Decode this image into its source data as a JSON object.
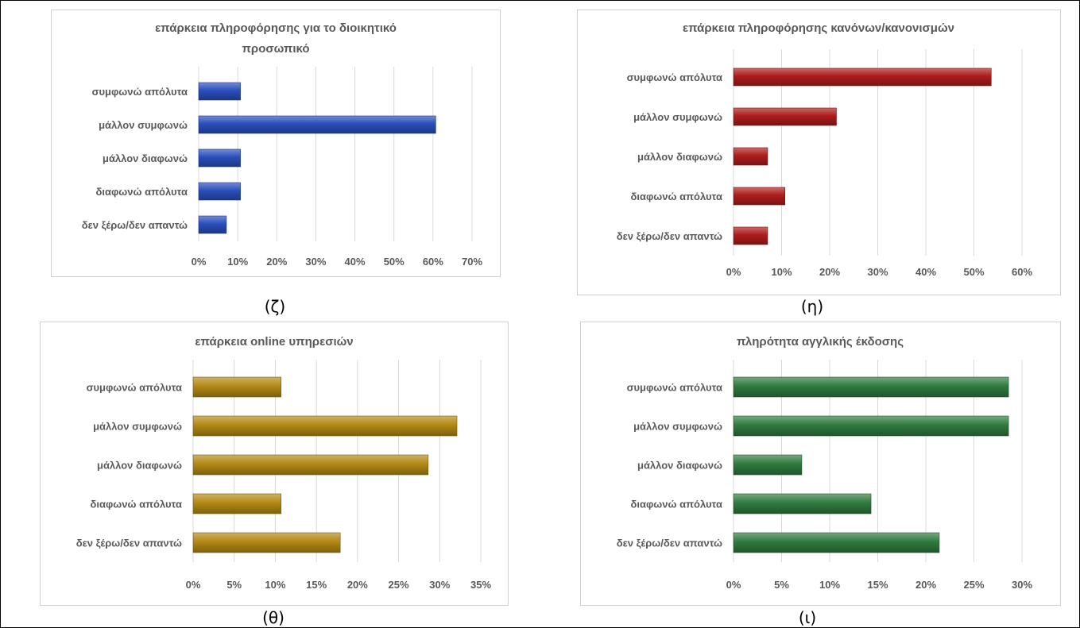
{
  "chart_data": [
    {
      "type": "bar",
      "title": "επάρκεια πληροφόρησης για το διοικητικό προσωπικό",
      "title_lines": [
        "επάρκεια πληροφόρησης για το διοικητικό",
        "προσωπικό"
      ],
      "categories": [
        "συμφωνώ απόλυτα",
        "μάλλον συμφωνώ",
        "μάλλον διαφωνώ",
        "διαφωνώ απόλυτα",
        "δεν ξέρω/δεν απαντώ"
      ],
      "values": [
        10.7,
        60.7,
        10.7,
        10.7,
        7.1
      ],
      "xlim": [
        0,
        70
      ],
      "ticks": [
        "0%",
        "10%",
        "20%",
        "30%",
        "40%",
        "50%",
        "60%",
        "70%"
      ],
      "color": "#2a4ebc",
      "grid": true,
      "caption": "(ζ)"
    },
    {
      "type": "bar",
      "title": "επάρκεια πληροφόρησης κανόνων/κανονισμών",
      "title_lines": [
        "επάρκεια πληροφόρησης κανόνων/κανονισμών"
      ],
      "categories": [
        "συμφωνώ απόλυτα",
        "μάλλον συμφωνώ",
        "μάλλον διαφωνώ",
        "διαφωνώ απόλυτα",
        "δεν ξέρω/δεν απαντώ"
      ],
      "values": [
        53.6,
        21.4,
        7.1,
        10.7,
        7.1
      ],
      "xlim": [
        0,
        60
      ],
      "ticks": [
        "0%",
        "10%",
        "20%",
        "30%",
        "40%",
        "50%",
        "60%"
      ],
      "color": "#ad1c1c",
      "grid": true,
      "caption": "(η)"
    },
    {
      "type": "bar",
      "title": "επάρκεια online υπηρεσιών",
      "title_lines": [
        "επάρκεια online υπηρεσιών"
      ],
      "categories": [
        "συμφωνώ απόλυτα",
        "μάλλον συμφωνώ",
        "μάλλον διαφωνώ",
        "διαφωνώ απόλυτα",
        "δεν ξέρω/δεν απαντώ"
      ],
      "values": [
        10.7,
        32.1,
        28.6,
        10.7,
        17.9
      ],
      "xlim": [
        0,
        35
      ],
      "ticks": [
        "0%",
        "5%",
        "10%",
        "15%",
        "20%",
        "25%",
        "30%",
        "35%"
      ],
      "color": "#b38914",
      "grid": true,
      "caption": "(θ)"
    },
    {
      "type": "bar",
      "title": "πληρότητα αγγλικής έκδοσης",
      "title_lines": [
        "πληρότητα αγγλικής έκδοσης"
      ],
      "categories": [
        "συμφωνώ απόλυτα",
        "μάλλον συμφωνώ",
        "μάλλον διαφωνώ",
        "διαφωνώ απόλυτα",
        "δεν ξέρω/δεν απαντώ"
      ],
      "values": [
        28.6,
        28.6,
        7.1,
        14.3,
        21.4
      ],
      "xlim": [
        0,
        30
      ],
      "ticks": [
        "0%",
        "5%",
        "10%",
        "15%",
        "20%",
        "25%",
        "30%"
      ],
      "color": "#2f7a3f",
      "grid": true,
      "caption": "(ι)"
    }
  ]
}
